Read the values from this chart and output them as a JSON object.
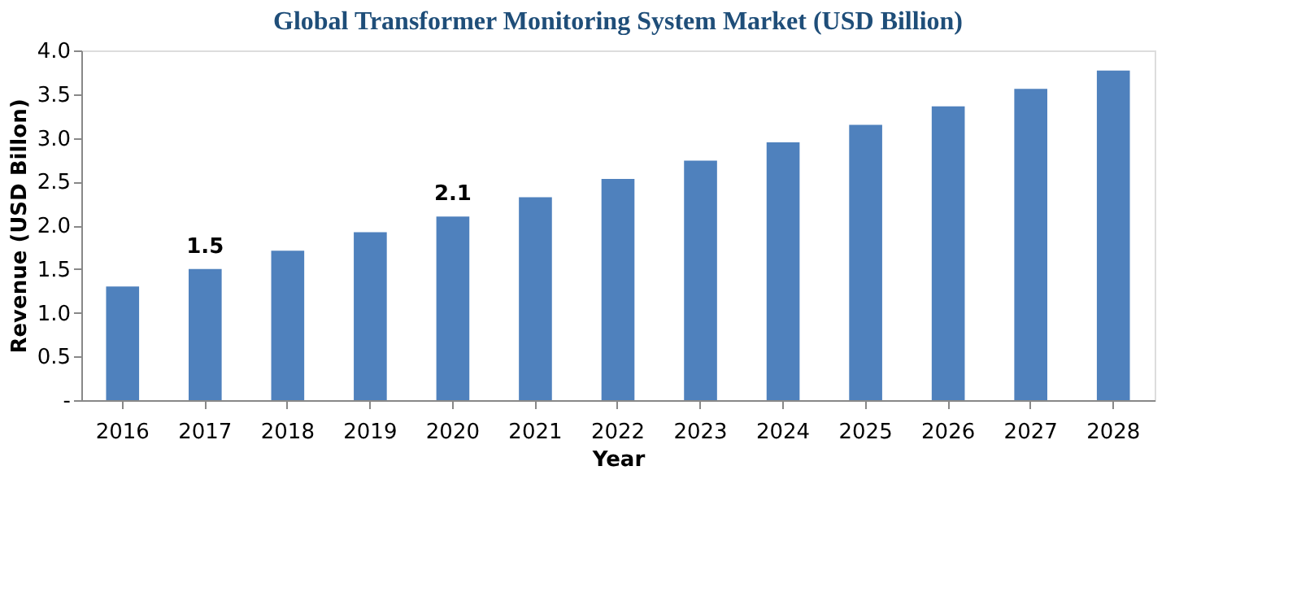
{
  "chart_data": {
    "type": "bar",
    "title": "Global Transformer Monitoring System Market (USD Billion)",
    "xlabel": "Year",
    "ylabel": "Revenue (USD Billon)",
    "categories": [
      "2016",
      "2017",
      "2018",
      "2019",
      "2020",
      "2021",
      "2022",
      "2023",
      "2024",
      "2025",
      "2026",
      "2027",
      "2028"
    ],
    "values": [
      1.3,
      1.5,
      1.71,
      1.92,
      2.1,
      2.32,
      2.53,
      2.74,
      2.95,
      3.15,
      3.36,
      3.56,
      3.77
    ],
    "value_labels": [
      null,
      "1.5",
      null,
      null,
      "2.1",
      null,
      null,
      null,
      null,
      null,
      null,
      null,
      null
    ],
    "color": "#4f81bd",
    "ylim": [
      0,
      4
    ],
    "yticks": [
      {
        "value": 0,
        "label": "-"
      },
      {
        "value": 0.5,
        "label": "0.5"
      },
      {
        "value": 1,
        "label": "1.0"
      },
      {
        "value": 1.5,
        "label": "1.5"
      },
      {
        "value": 2,
        "label": "2.0"
      },
      {
        "value": 2.5,
        "label": "2.5"
      },
      {
        "value": 3,
        "label": "3.0"
      },
      {
        "value": 3.5,
        "label": "3.5"
      },
      {
        "value": 4,
        "label": "4.0"
      }
    ],
    "grid": false
  }
}
